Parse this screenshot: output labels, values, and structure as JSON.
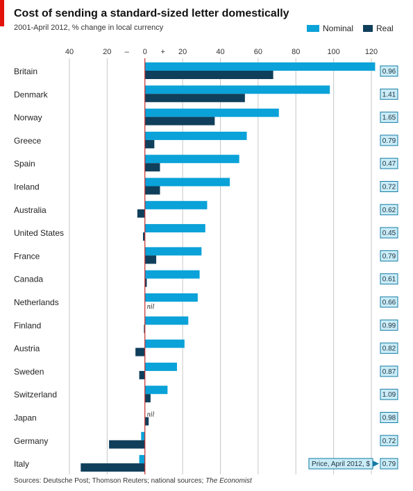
{
  "header": {
    "title": "Cost of sending a standard-sized letter domestically",
    "subtitle": "2001-April 2012, % change in local currency"
  },
  "legend": {
    "nominal": "Nominal",
    "real": "Real"
  },
  "footer": {
    "sources_prefix": "Sources: Deutsche Post; Thomson Reuters; national sources; ",
    "sources_publication": "The Economist"
  },
  "colors": {
    "nominal": "#0aa2d8",
    "real": "#103f5b",
    "brand": "#e3120b",
    "grid": "#c6c6c6",
    "zero_line": "#c32b2b",
    "price_box_fill": "#c9ecf7",
    "price_box_border": "#147aa3"
  },
  "chart_data": {
    "type": "bar",
    "orientation": "horizontal",
    "title": "Cost of sending a standard-sized letter domestically",
    "subtitle": "2001-April 2012, % change in local currency",
    "x_range": [
      -40,
      120
    ],
    "x_ticks": [
      {
        "value": -40,
        "label": "40"
      },
      {
        "value": -20,
        "label": "20"
      },
      {
        "value": 0,
        "label": "0"
      },
      {
        "value": 20,
        "label": "20"
      },
      {
        "value": 40,
        "label": "40"
      },
      {
        "value": 60,
        "label": "60"
      },
      {
        "value": 80,
        "label": "80"
      },
      {
        "value": 100,
        "label": "100"
      },
      {
        "value": 120,
        "label": "120"
      }
    ],
    "axis_sign_labels": {
      "negative": "–",
      "positive": "+"
    },
    "grid": true,
    "legend_position": "top-right",
    "categories": [
      "Britain",
      "Denmark",
      "Norway",
      "Greece",
      "Spain",
      "Ireland",
      "Australia",
      "United States",
      "France",
      "Canada",
      "Netherlands",
      "Finland",
      "Austria",
      "Sweden",
      "Switzerland",
      "Japan",
      "Germany",
      "Italy"
    ],
    "series": [
      {
        "name": "Nominal",
        "values": [
          122,
          98,
          71,
          54,
          50,
          45,
          33,
          32,
          30,
          29,
          28,
          23,
          21,
          17,
          12,
          0,
          -2,
          -3
        ]
      },
      {
        "name": "Real",
        "values": [
          68,
          53,
          37,
          5,
          8,
          8,
          -4,
          -1,
          6,
          1,
          0,
          -0.5,
          -5,
          -3,
          3,
          2,
          -19,
          -34
        ]
      }
    ],
    "nil_labels": [
      {
        "category": "Netherlands",
        "series": "Real",
        "text": "nil"
      },
      {
        "category": "Japan",
        "series": "Nominal",
        "text": "nil"
      }
    ],
    "price_column": {
      "label": "Price, April 2012, $",
      "values": [
        0.96,
        1.41,
        1.65,
        0.79,
        0.47,
        0.72,
        0.62,
        0.45,
        0.79,
        0.61,
        0.66,
        0.99,
        0.82,
        0.87,
        1.09,
        0.98,
        0.72,
        0.79
      ]
    }
  }
}
